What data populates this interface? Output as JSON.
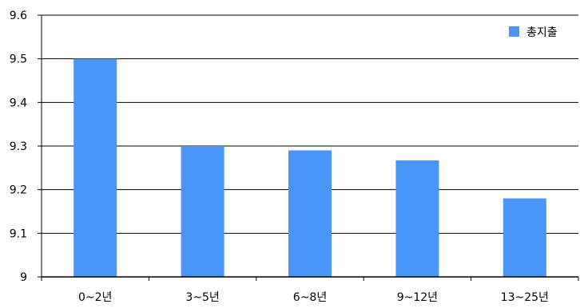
{
  "chart_data": {
    "type": "bar",
    "title": "",
    "xlabel": "",
    "ylabel": "",
    "categories": [
      "0~2년",
      "3~5년",
      "6~8년",
      "9~12년",
      "13~25년"
    ],
    "series": [
      {
        "name": "총지출",
        "values": [
          9.5,
          9.3,
          9.29,
          9.267,
          9.18
        ],
        "color": "#4a96f8"
      }
    ],
    "ylim": [
      9,
      9.6
    ],
    "yticks": [
      "9",
      "9.1",
      "9.2",
      "9.3",
      "9.4",
      "9.5",
      "9.6"
    ],
    "grid": true,
    "legend_position": "top-right"
  }
}
